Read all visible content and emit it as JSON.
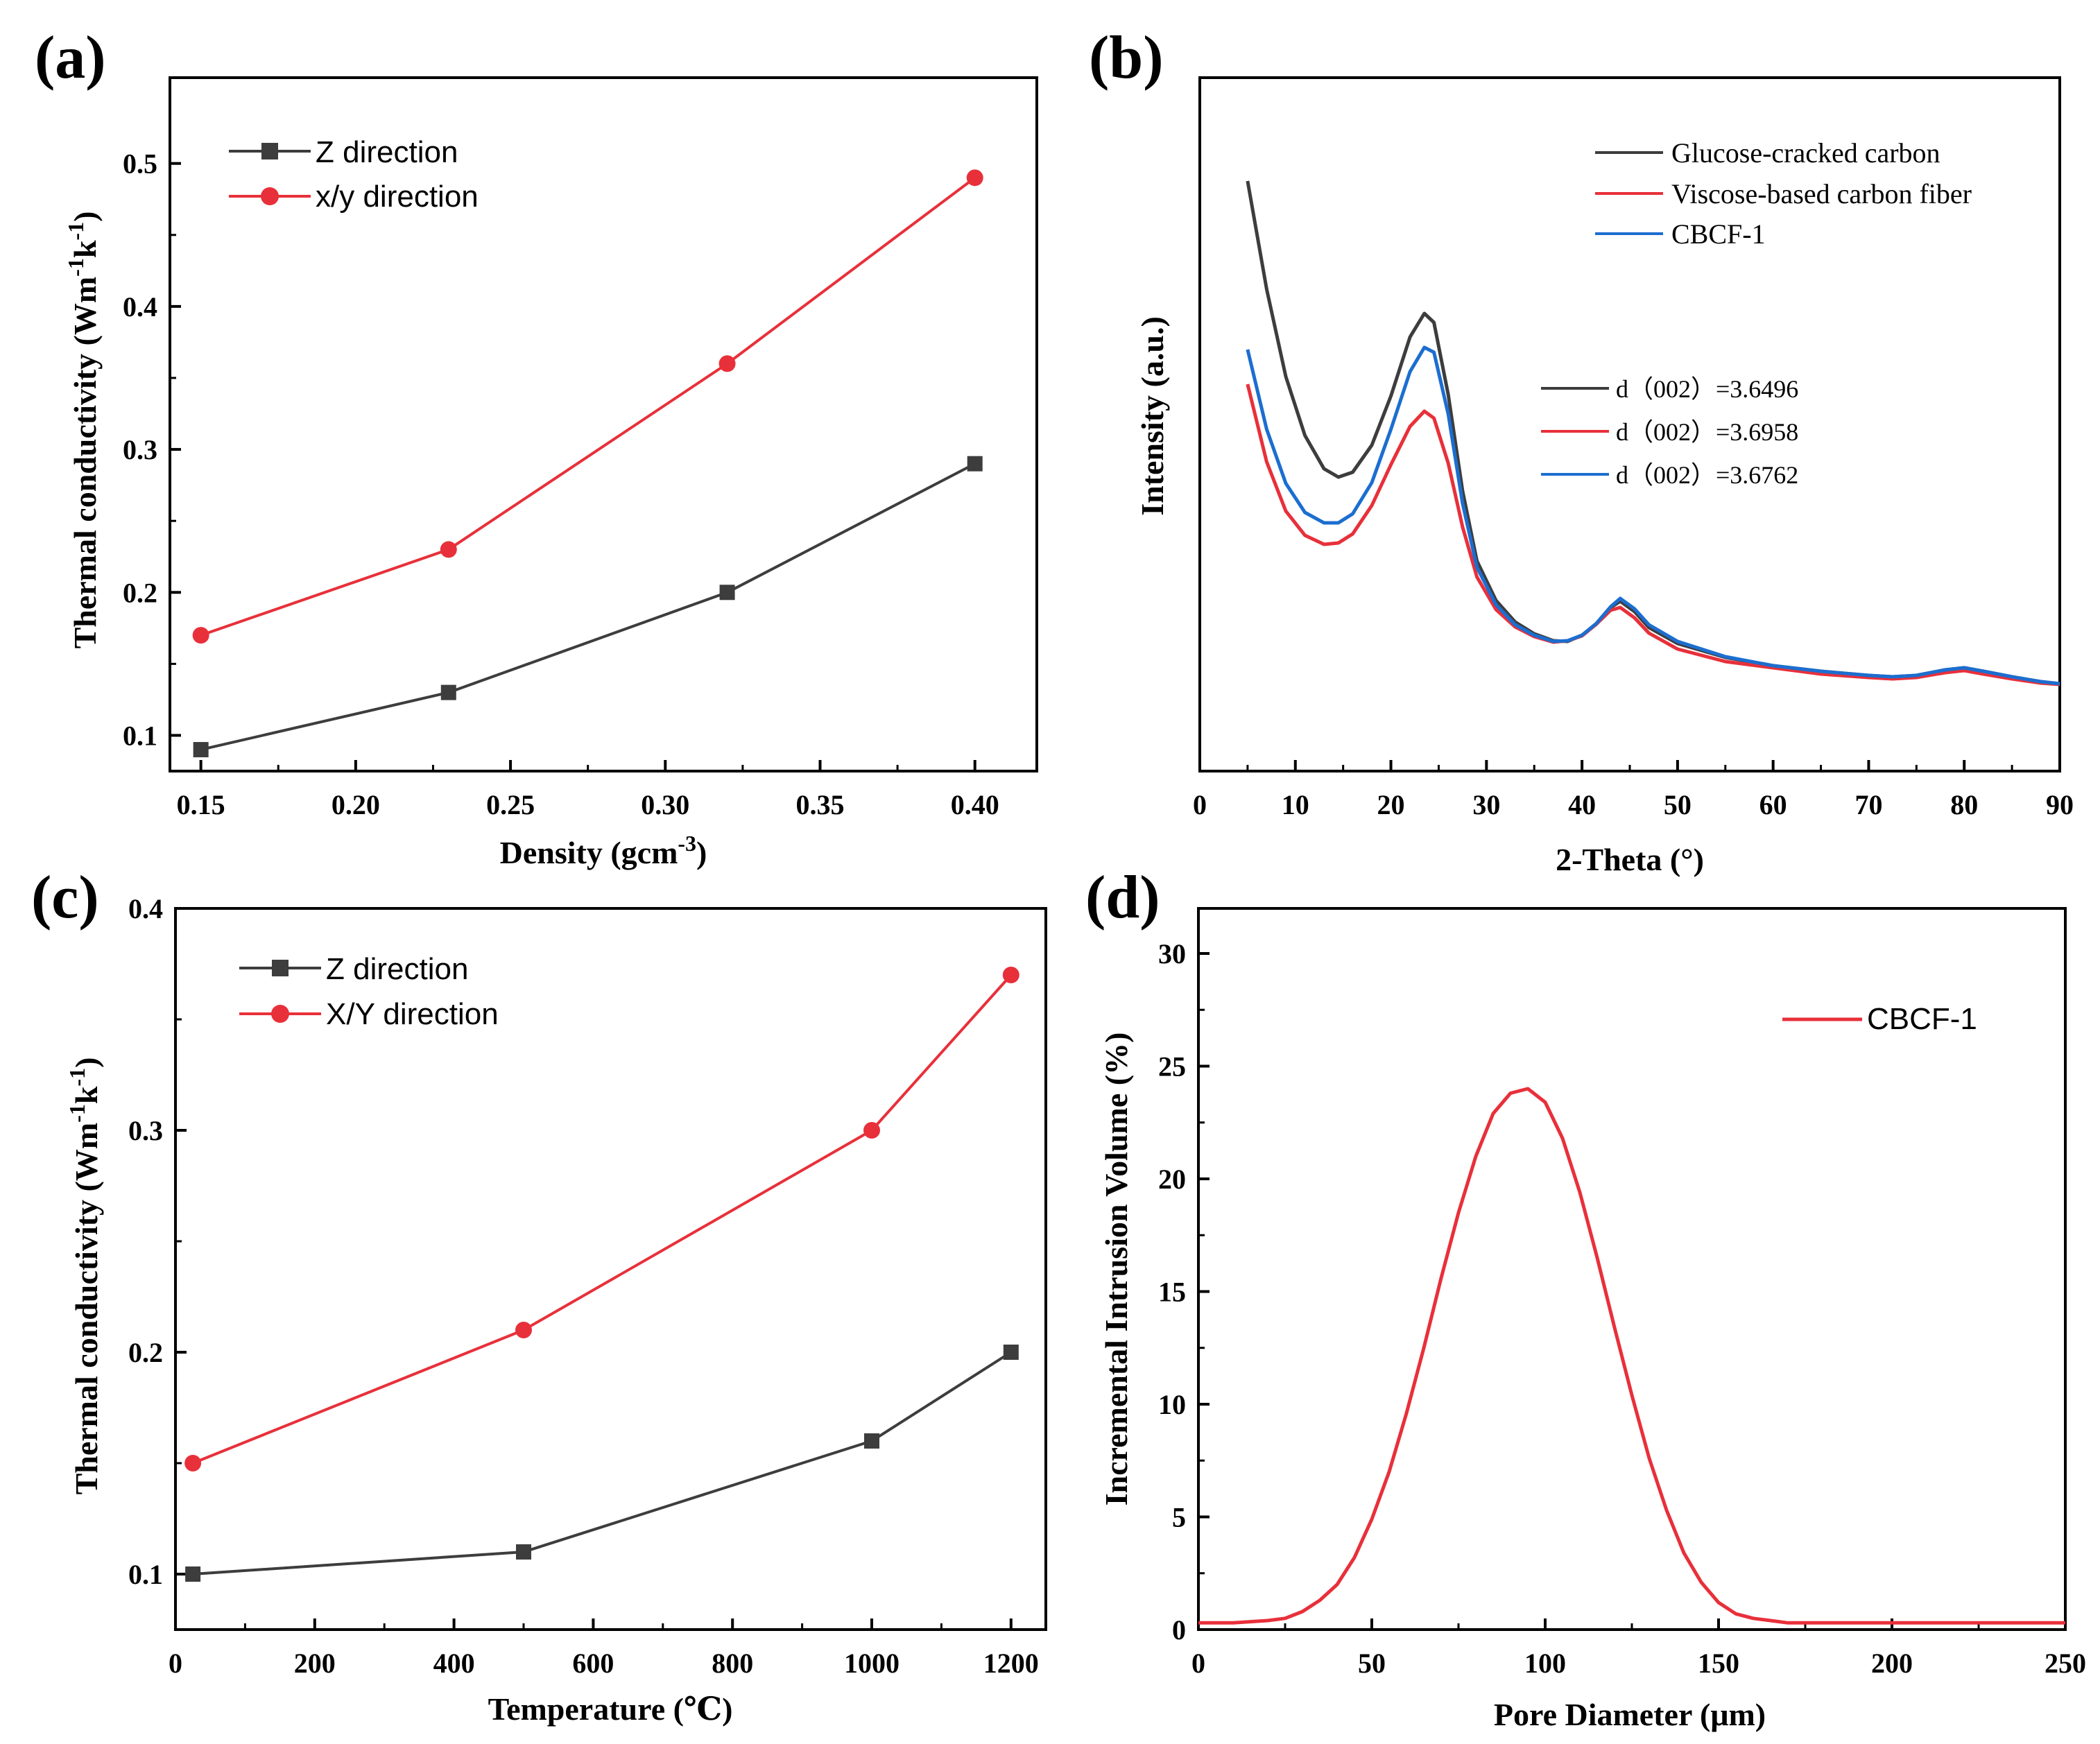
{
  "colors": {
    "black": "#3d3d3d",
    "red": "#e8303a",
    "blue": "#1c6ed0",
    "axis": "#000000"
  },
  "chart_data": [
    {
      "id": "a",
      "panel_label": "(a)",
      "type": "line",
      "xlabel": "Density (gcm",
      "xlabel_sup": "-3",
      "xlabel_tail": ")",
      "ylabel": "Thermal conductivity (Wm",
      "ylabel_sup1": "-1",
      "ylabel_mid": "k",
      "ylabel_sup2": "-1",
      "ylabel_tail": ")",
      "xlim": [
        0.14,
        0.42
      ],
      "ylim": [
        0.075,
        0.56
      ],
      "xticks": [
        0.15,
        0.2,
        0.25,
        0.3,
        0.35,
        0.4
      ],
      "xtick_labels": [
        "0.15",
        "0.20",
        "0.25",
        "0.30",
        "0.35",
        "0.40"
      ],
      "yticks": [
        0.1,
        0.2,
        0.3,
        0.4,
        0.5
      ],
      "ytick_labels": [
        "0.1",
        "0.2",
        "0.3",
        "0.4",
        "0.5"
      ],
      "series": [
        {
          "name": "Z direction",
          "marker": "square",
          "color": "#3d3d3d",
          "x": [
            0.15,
            0.23,
            0.32,
            0.4
          ],
          "y": [
            0.09,
            0.13,
            0.2,
            0.29
          ]
        },
        {
          "name": "x/y direction",
          "marker": "circle",
          "color": "#e8303a",
          "x": [
            0.15,
            0.23,
            0.32,
            0.4
          ],
          "y": [
            0.17,
            0.23,
            0.36,
            0.49
          ]
        }
      ],
      "legend_position": "top-left"
    },
    {
      "id": "b",
      "panel_label": "(b)",
      "type": "line",
      "xlabel": "2-Theta (°)",
      "ylabel": "Intensity (a.u.)",
      "xlim": [
        0,
        90
      ],
      "ylim": [
        0,
        100
      ],
      "xticks": [
        0,
        10,
        20,
        30,
        40,
        50,
        60,
        70,
        80,
        90
      ],
      "xtick_labels": [
        "0",
        "10",
        "20",
        "30",
        "40",
        "50",
        "60",
        "70",
        "80",
        "90"
      ],
      "series": [
        {
          "name": "Glucose-cracked carbon",
          "color": "#3d3d3d",
          "x": [
            5,
            7,
            9,
            11,
            13,
            14.5,
            16,
            18,
            20,
            22,
            23.5,
            24.5,
            26,
            27.5,
            29,
            31,
            33,
            35,
            37,
            38.5,
            40,
            41.5,
            43,
            44,
            45.5,
            47,
            50,
            55,
            60,
            65,
            70,
            72.5,
            75,
            78,
            80,
            82,
            85,
            88,
            90
          ],
          "y": [
            85.1,
            69.5,
            56.9,
            48.4,
            43.6,
            42.4,
            43.1,
            47.0,
            54.1,
            62.6,
            66.0,
            64.7,
            54.3,
            40.4,
            30.3,
            24.6,
            21.5,
            19.8,
            18.8,
            18.7,
            19.6,
            21.2,
            23.6,
            24.5,
            23.0,
            20.7,
            18.4,
            16.4,
            15.2,
            14.4,
            13.8,
            13.6,
            13.8,
            14.6,
            14.9,
            14.4,
            13.6,
            12.9,
            12.6
          ]
        },
        {
          "name": "Viscose-based carbon fiber",
          "color": "#e8303a",
          "x": [
            5,
            7,
            9,
            11,
            13,
            14.5,
            16,
            18,
            20,
            22,
            23.5,
            24.5,
            26,
            27.5,
            29,
            31,
            33,
            35,
            37,
            38.5,
            40,
            41.5,
            43,
            44,
            45.5,
            47,
            50,
            55,
            60,
            65,
            70,
            72.5,
            75,
            78,
            80,
            82,
            85,
            88,
            90
          ],
          "y": [
            55.8,
            44.6,
            37.5,
            34.0,
            32.7,
            32.9,
            34.2,
            38.3,
            44.2,
            49.7,
            51.9,
            50.9,
            44.4,
            35.2,
            28.0,
            23.3,
            20.8,
            19.4,
            18.6,
            18.8,
            19.5,
            21.2,
            23.2,
            23.6,
            22.1,
            19.9,
            17.6,
            15.8,
            14.9,
            14.0,
            13.5,
            13.3,
            13.5,
            14.2,
            14.5,
            14.0,
            13.3,
            12.7,
            12.5
          ]
        },
        {
          "name": "CBCF-1",
          "color": "#1c6ed0",
          "x": [
            5,
            7,
            9,
            11,
            13,
            14.5,
            16,
            18,
            20,
            22,
            23.5,
            24.5,
            26,
            27.5,
            29,
            31,
            33,
            35,
            37,
            38.5,
            40,
            41.5,
            43,
            44,
            45.5,
            47,
            50,
            55,
            60,
            65,
            70,
            72.5,
            75,
            78,
            80,
            82,
            85,
            88,
            90
          ],
          "y": [
            60.8,
            49.3,
            41.5,
            37.3,
            35.8,
            35.8,
            37.1,
            41.6,
            49.3,
            57.6,
            61.1,
            60.4,
            51.5,
            38.6,
            29.4,
            24.0,
            21.1,
            19.6,
            18.7,
            18.8,
            19.6,
            21.3,
            23.7,
            24.9,
            23.4,
            21.1,
            18.7,
            16.5,
            15.2,
            14.4,
            13.8,
            13.6,
            13.8,
            14.6,
            14.9,
            14.4,
            13.6,
            12.9,
            12.6
          ]
        }
      ],
      "annotations": [
        {
          "color": "#3d3d3d",
          "label": "d（002）=3.6496"
        },
        {
          "color": "#e8303a",
          "label": "d（002）=3.6958"
        },
        {
          "color": "#1c6ed0",
          "label": "d（002）=3.6762"
        }
      ],
      "legend_position": "top-right"
    },
    {
      "id": "c",
      "panel_label": "(c)",
      "type": "line",
      "xlabel": "Temperature (℃)",
      "ylabel": "Thermal conductivity (Wm",
      "ylabel_sup1": "-1",
      "ylabel_mid": "k",
      "ylabel_sup2": "-1",
      "ylabel_tail": ")",
      "xlim": [
        0,
        1250
      ],
      "ylim": [
        0.075,
        0.4
      ],
      "xticks": [
        0,
        200,
        400,
        600,
        800,
        1000,
        1200
      ],
      "xtick_labels": [
        "0",
        "200",
        "400",
        "600",
        "800",
        "1000",
        "1200"
      ],
      "yticks": [
        0.1,
        0.2,
        0.3,
        0.4
      ],
      "ytick_labels": [
        "0.1",
        "0.2",
        "0.3",
        "0.4"
      ],
      "series": [
        {
          "name": "Z direction",
          "marker": "square",
          "color": "#3d3d3d",
          "x": [
            25,
            500,
            1000,
            1200
          ],
          "y": [
            0.1,
            0.11,
            0.16,
            0.2
          ]
        },
        {
          "name": "X/Y direction",
          "marker": "circle",
          "color": "#e8303a",
          "x": [
            25,
            500,
            1000,
            1200
          ],
          "y": [
            0.15,
            0.21,
            0.3,
            0.37
          ]
        }
      ],
      "legend_position": "top-left"
    },
    {
      "id": "d",
      "panel_label": "(d)",
      "type": "line",
      "xlabel": "Pore Diameter  (μm)",
      "ylabel": "Incremental Intrusion Volume (%)",
      "xlim": [
        0,
        250
      ],
      "ylim": [
        0,
        32
      ],
      "xticks": [
        0,
        50,
        100,
        150,
        200,
        250
      ],
      "xtick_labels": [
        "0",
        "50",
        "100",
        "150",
        "200",
        "250"
      ],
      "yticks": [
        0,
        5,
        10,
        15,
        20,
        25,
        30
      ],
      "ytick_labels": [
        "0",
        "5",
        "10",
        "15",
        "20",
        "25",
        "30"
      ],
      "series": [
        {
          "name": "CBCF-1",
          "color": "#e8303a",
          "x": [
            0,
            10,
            20,
            25,
            30,
            35,
            40,
            45,
            50,
            55,
            60,
            65,
            70,
            75,
            80,
            85,
            90,
            95,
            100,
            105,
            110,
            115,
            120,
            125,
            130,
            135,
            140,
            145,
            150,
            155,
            160,
            165,
            170,
            180,
            190,
            200,
            210,
            220,
            230,
            240,
            250
          ],
          "y": [
            0.3,
            0.3,
            0.4,
            0.5,
            0.8,
            1.3,
            2.0,
            3.2,
            4.9,
            7.0,
            9.6,
            12.5,
            15.6,
            18.5,
            21.0,
            22.9,
            23.8,
            24.0,
            23.4,
            21.8,
            19.4,
            16.5,
            13.4,
            10.4,
            7.6,
            5.3,
            3.4,
            2.1,
            1.2,
            0.7,
            0.5,
            0.4,
            0.3,
            0.3,
            0.3,
            0.3,
            0.3,
            0.3,
            0.3,
            0.3,
            0.3
          ]
        }
      ],
      "legend_position": "top-right"
    }
  ]
}
